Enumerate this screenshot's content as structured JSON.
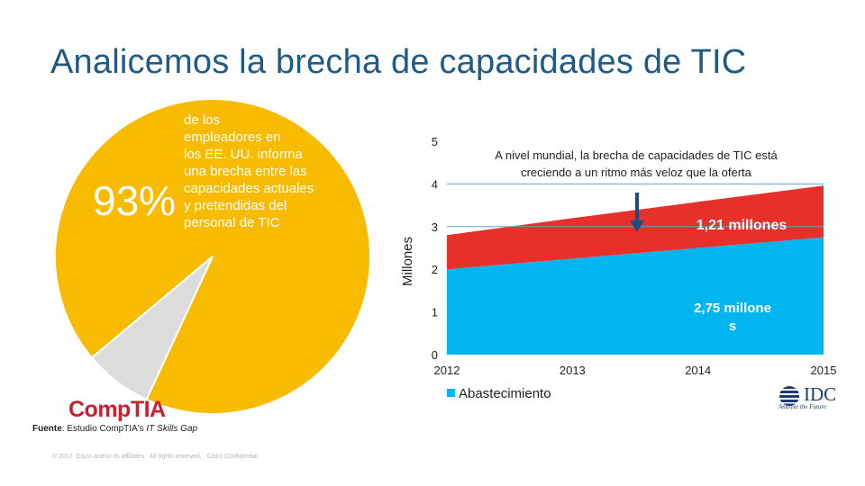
{
  "title": "Analicemos la brecha de capacidades de TIC",
  "pie": {
    "percent_label": "93%",
    "lines": [
      "de los",
      "empleadores en",
      "los EE. UU. informa",
      "una brecha entre las",
      "capacidades actuales",
      "y pretendidas del",
      "personal de TIC"
    ],
    "logo": "CompTIA",
    "source_bold": "Fuente",
    "source_text": ": Estudio CompTIA's ",
    "source_italic": "IT Skills Gap",
    "copyright": "© 2017  Cisco and/or its affiliates.  All rights reserved.   Cisco Confidential"
  },
  "chart_data": [
    {
      "type": "pie",
      "values": [
        93,
        7
      ],
      "colors": [
        "#f9bb00",
        "#dcdcdc"
      ]
    },
    {
      "type": "area",
      "stacked": true,
      "x": [
        2012,
        2013,
        2014,
        2015
      ],
      "series": [
        {
          "name": "Abastecimiento",
          "values": [
            2.0,
            2.25,
            2.5,
            2.75
          ],
          "color": "#00b5f0"
        },
        {
          "values": [
            0.8,
            0.95,
            1.08,
            1.21
          ],
          "color": "#e8302a"
        }
      ],
      "xlabel": "",
      "ylabel": "Millones",
      "ylim": [
        0,
        5
      ],
      "yticks": [
        0,
        1,
        2,
        3,
        4,
        5
      ],
      "xticks": [
        "2012",
        "2013",
        "2014",
        "2015"
      ],
      "gridlines": [
        3,
        4
      ],
      "legend": "bottom-left",
      "annotation": [
        "A nivel mundial, la brecha de capacidades de TIC está",
        "creciendo a un ritmo más veloz que la oferta"
      ],
      "gap_label": "1,21 millones",
      "supply_label_lines": [
        "2,75 millone",
        "s"
      ]
    }
  ],
  "idc": {
    "name": "IDC",
    "tagline": "Analyze the Future"
  }
}
